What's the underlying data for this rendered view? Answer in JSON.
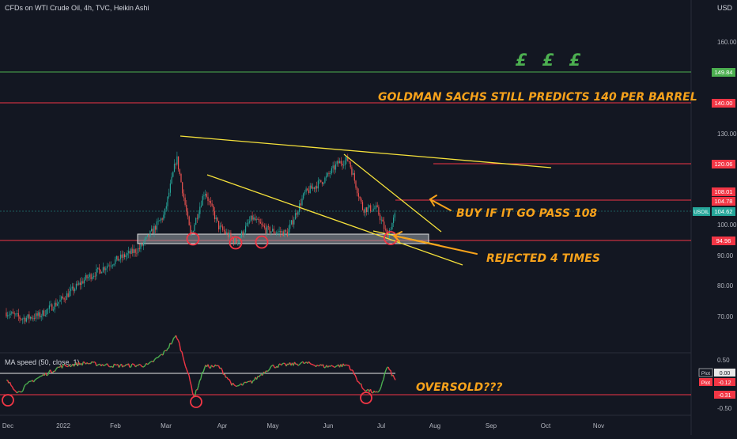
{
  "header": {
    "title": "CFDs on WTI Crude Oil, 4h, TVC, Heikin Ashi",
    "currency": "USD"
  },
  "price_axis": {
    "ticks": [
      "160.00",
      "130.00",
      "100.00",
      "90.00",
      "80.00",
      "70.00"
    ]
  },
  "level_badges": {
    "l149": "149.84",
    "l140": "140.00",
    "l120": "120.06",
    "l108": "108.01",
    "l104": "104.78",
    "l95": "94.96"
  },
  "symbol_badge": {
    "name": "USOIL",
    "value": "104.62"
  },
  "oscillator": {
    "title": "MA speed (50, close, 1)",
    "ticks": [
      "0.50",
      "-0.50"
    ],
    "plot_label": "Plot",
    "plot_value_1": "0.00",
    "plot_value_2": "-0.12",
    "threshold": "-0.31"
  },
  "time_axis": [
    "Dec",
    "2022",
    "Feb",
    "Mar",
    "Apr",
    "May",
    "Jun",
    "Jul",
    "Aug",
    "Sep",
    "Oct",
    "Nov"
  ],
  "annotations": {
    "pounds": "£ £ £",
    "goldman": "GOLDMAN SACHS STILL PREDICTS 140 PER BARREL",
    "buy": "BUY IF IT GO PASS 108",
    "rejected": "REJECTED 4 TIMES",
    "oversold": "OVERSOLD???"
  },
  "colors": {
    "background": "#131722",
    "bull": "#26a69a",
    "bear": "#ef5350",
    "green_line": "#4caf50",
    "red_line": "#f23645",
    "trend_line": "#f5e13b",
    "annotation": "#f7a21b",
    "osc_up": "#4caf50",
    "osc_down": "#f23645"
  },
  "chart_data": {
    "type": "candlestick",
    "title": "",
    "x_range": [
      "2021-12-01",
      "2022-11-30"
    ],
    "y_range": [
      65,
      165
    ],
    "levels": [
      149.84,
      140.0,
      120.06,
      108.01,
      104.78,
      94.96
    ],
    "close_path": [
      [
        "2021-12-01",
        72
      ],
      [
        "2021-12-10",
        70
      ],
      [
        "2021-12-20",
        71
      ],
      [
        "2022-01-01",
        76
      ],
      [
        "2022-01-15",
        83
      ],
      [
        "2022-02-01",
        89
      ],
      [
        "2022-02-15",
        93
      ],
      [
        "2022-03-01",
        104
      ],
      [
        "2022-03-08",
        123
      ],
      [
        "2022-03-16",
        97
      ],
      [
        "2022-03-24",
        112
      ],
      [
        "2022-04-01",
        100
      ],
      [
        "2022-04-11",
        95
      ],
      [
        "2022-04-20",
        103
      ],
      [
        "2022-04-28",
        99
      ],
      [
        "2022-05-10",
        98
      ],
      [
        "2022-05-20",
        111
      ],
      [
        "2022-06-01",
        116
      ],
      [
        "2022-06-08",
        121
      ],
      [
        "2022-06-14",
        122
      ],
      [
        "2022-06-22",
        106
      ],
      [
        "2022-06-30",
        106
      ],
      [
        "2022-07-06",
        97
      ],
      [
        "2022-07-11",
        104.62
      ]
    ],
    "oscillator": {
      "name": "MA speed (50, close, 1)",
      "y_range": [
        -0.55,
        0.6
      ],
      "threshold": -0.31,
      "path": [
        [
          "2021-12-01",
          -0.1
        ],
        [
          "2021-12-08",
          -0.28
        ],
        [
          "2021-12-15",
          -0.12
        ],
        [
          "2022-01-01",
          0.1
        ],
        [
          "2022-01-15",
          0.15
        ],
        [
          "2022-02-01",
          0.11
        ],
        [
          "2022-02-20",
          0.12
        ],
        [
          "2022-03-01",
          0.3
        ],
        [
          "2022-03-08",
          0.55
        ],
        [
          "2022-03-14",
          0.05
        ],
        [
          "2022-03-18",
          -0.35
        ],
        [
          "2022-03-24",
          0.1
        ],
        [
          "2022-04-01",
          0.1
        ],
        [
          "2022-04-10",
          -0.2
        ],
        [
          "2022-04-20",
          -0.12
        ],
        [
          "2022-05-01",
          0.1
        ],
        [
          "2022-05-20",
          0.15
        ],
        [
          "2022-06-01",
          0.1
        ],
        [
          "2022-06-14",
          0.12
        ],
        [
          "2022-06-22",
          -0.22
        ],
        [
          "2022-07-01",
          -0.3
        ],
        [
          "2022-07-06",
          0.1
        ],
        [
          "2022-07-11",
          -0.12
        ]
      ]
    }
  }
}
